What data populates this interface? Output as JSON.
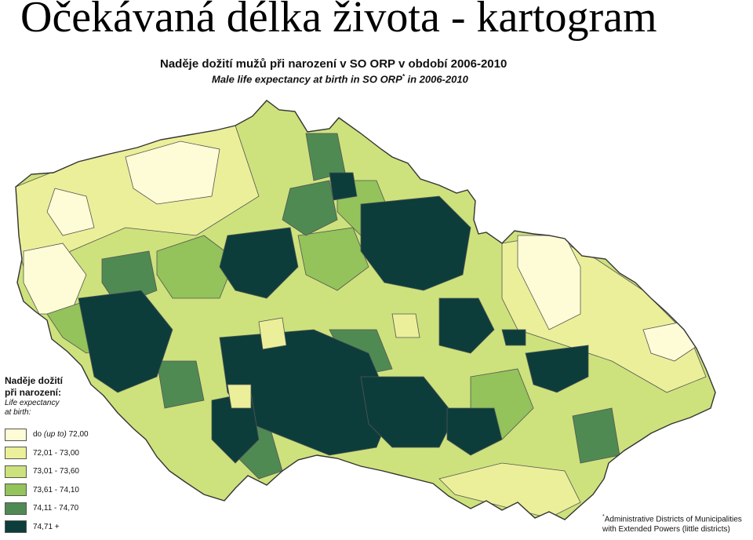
{
  "slide": {
    "title": "Očekávaná délka života - kartogram"
  },
  "map": {
    "title_cz": "Naděje dožití mužů při narození v SO ORP v období 2006-2010",
    "title_en": "Male life expectancy at birth in SO ORP",
    "title_en_mark": "*",
    "title_en_suffix": " in 2006-2010"
  },
  "legend": {
    "title_cz_line1": "Naděje dožití",
    "title_cz_line2": "při narození:",
    "title_en_line1": "Life expectancy",
    "title_en_line2": "at birth:",
    "classes": [
      {
        "label_pre": "do ",
        "label_it": "(up to)",
        "label_post": " 72,00",
        "color": "#fdfcd6"
      },
      {
        "label": "72,01 - 73,00",
        "color": "#ebef9a"
      },
      {
        "label": "73,01 - 73,60",
        "color": "#cde27c"
      },
      {
        "label": "73,61 - 74,10",
        "color": "#93c35a"
      },
      {
        "label": "74,11 - 74,70",
        "color": "#4f8a53"
      },
      {
        "label": "74,71 +",
        "color": "#0c3d3b"
      }
    ]
  },
  "footnote": {
    "mark": "*",
    "line1": "Administrative Districts of Municipalities",
    "line2": "with Extended Powers (little districts)"
  }
}
